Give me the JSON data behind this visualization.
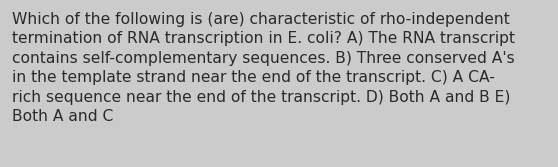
{
  "text": "Which of the following is (are) characteristic of rho-independent\ntermination of RNA transcription in E. coli? A) The RNA transcript\ncontains self-complementary sequences. B) Three conserved A's\nin the template strand near the end of the transcript. C) A CA-\nrich sequence near the end of the transcript. D) Both A and B E)\nBoth A and C",
  "background_color": "#cbcbcb",
  "text_color": "#2a2a2a",
  "font_size": 11.2,
  "font_family": "DejaVu Sans",
  "fig_width": 5.58,
  "fig_height": 1.67,
  "dpi": 100
}
